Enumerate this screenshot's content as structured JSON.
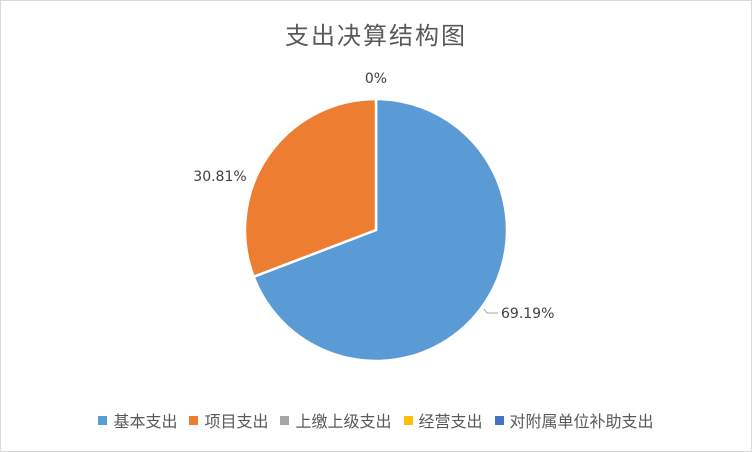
{
  "chart_data": {
    "type": "pie",
    "title": "支出决算结构图",
    "categories": [
      "基本支出",
      "项目支出",
      "上缴上级支出",
      "经营支出",
      "对附属单位补助支出"
    ],
    "values": [
      69.19,
      30.81,
      0,
      0,
      0
    ],
    "labels": [
      "69.19%",
      "30.81%",
      "0%"
    ],
    "colors": [
      "#5b9bd5",
      "#ed7d31",
      "#a5a5a5",
      "#ffc000",
      "#4472c4"
    ],
    "legend_position": "bottom"
  }
}
